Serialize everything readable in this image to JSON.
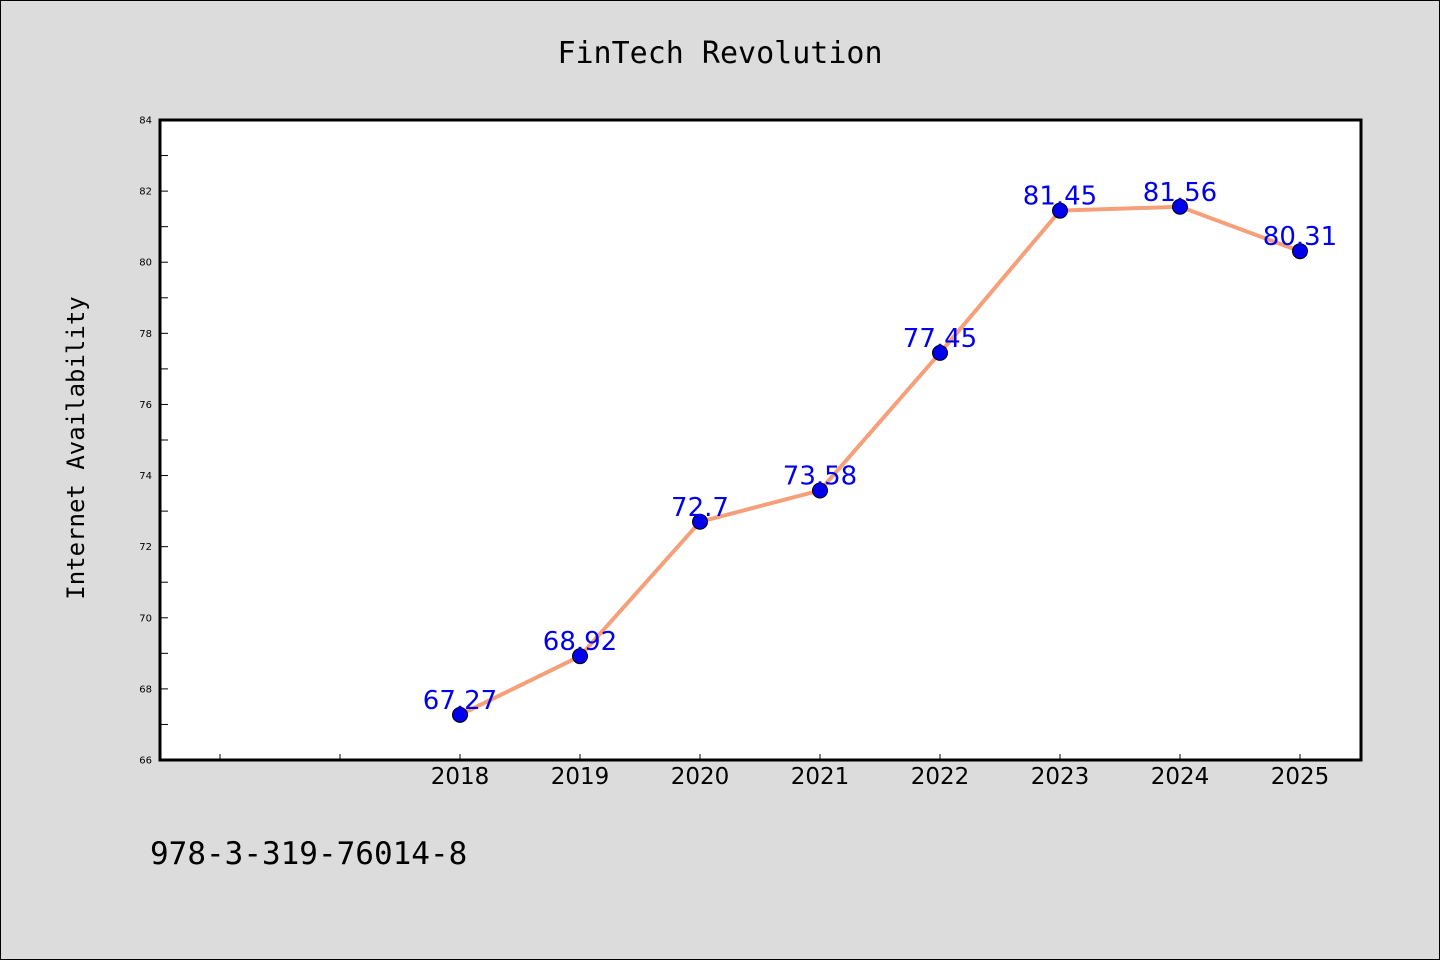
{
  "chart_data": {
    "type": "line",
    "title": "FinTech Revolution",
    "xlabel": "",
    "ylabel": "Internet Availability",
    "categories": [
      "2018",
      "2019",
      "2020",
      "2021",
      "2022",
      "2023",
      "2024",
      "2025"
    ],
    "series": [
      {
        "values": [
          67.27,
          68.92,
          72.7,
          73.58,
          77.45,
          81.45,
          81.56,
          80.31
        ],
        "labels": [
          "67.27",
          "68.92",
          "72.7",
          "73.58",
          "77.45",
          "81.45",
          "81.56",
          "80.31"
        ],
        "line_color": "#f5a07a",
        "marker_color": "#0000ee"
      }
    ],
    "ylim": [
      66,
      84
    ],
    "yticks": [
      "66",
      "68",
      "70",
      "72",
      "74",
      "76",
      "78",
      "80",
      "82",
      "84"
    ],
    "grid": false,
    "legend": "none"
  },
  "footer": {
    "code": "978-3-319-76014-8"
  },
  "colors": {
    "background": "#dcdcdc",
    "plot_background": "#ffffff",
    "line": "#f5a07a",
    "marker": "#0000ee",
    "data_label": "#0000ee"
  }
}
